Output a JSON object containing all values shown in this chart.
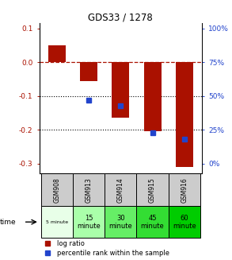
{
  "title": "GDS33 / 1278",
  "samples": [
    "GSM908",
    "GSM913",
    "GSM914",
    "GSM915",
    "GSM916"
  ],
  "time_labels_line1": [
    "5 minute",
    "15",
    "30",
    "45",
    "60"
  ],
  "time_labels_line2": [
    "",
    "minute",
    "minute",
    "minute",
    "minute"
  ],
  "log_ratios": [
    0.05,
    -0.055,
    -0.165,
    -0.205,
    -0.31
  ],
  "bar_color": "#aa1100",
  "dot_color": "#2244cc",
  "ylim": [
    -0.33,
    0.115
  ],
  "yticks_left": [
    0.1,
    0.0,
    -0.1,
    -0.2,
    -0.3
  ],
  "yticks_right": [
    100,
    75,
    50,
    25,
    0
  ],
  "dot_y_right": [
    null,
    47,
    43,
    23,
    18
  ],
  "time_colors": [
    "#e8ffe8",
    "#aaffaa",
    "#66ee66",
    "#33dd33",
    "#00cc00"
  ],
  "gsm_bg_color": "#cccccc",
  "legend_red_label": "log ratio",
  "legend_blue_label": "percentile rank within the sample"
}
